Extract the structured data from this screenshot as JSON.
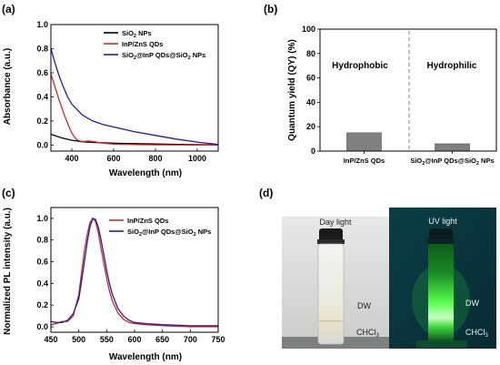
{
  "chart_data": [
    {
      "panel": "(a)",
      "type": "line",
      "title": "",
      "xlabel": "Wavelength (nm)",
      "ylabel": "Absorbance (a.u.)",
      "xlim": [
        300,
        1100
      ],
      "ylim": [
        -0.05,
        1.0
      ],
      "xticks": [
        400,
        600,
        800,
        1000
      ],
      "yticks": [
        0.0,
        0.2,
        0.4,
        0.6,
        0.8,
        1.0
      ],
      "legend_position": "top-right",
      "series": [
        {
          "name_parts": [
            "SiO",
            "2",
            " NPs"
          ],
          "color": "#000000",
          "x": [
            300,
            350,
            400,
            450,
            500,
            600,
            700,
            800,
            900,
            1000,
            1100
          ],
          "y": [
            0.09,
            0.06,
            0.04,
            0.028,
            0.022,
            0.016,
            0.012,
            0.009,
            0.006,
            0.004,
            0.002
          ]
        },
        {
          "name_parts": [
            "InP/ZnS QDs"
          ],
          "color": "#d62728",
          "x": [
            300,
            320,
            340,
            360,
            380,
            400,
            420,
            440,
            460,
            480,
            500,
            550,
            600,
            700,
            800,
            1000,
            1100
          ],
          "y": [
            0.59,
            0.48,
            0.37,
            0.27,
            0.18,
            0.1,
            0.05,
            0.032,
            0.03,
            0.034,
            0.03,
            0.015,
            0.008,
            0.004,
            0.002,
            0.0,
            0.0
          ]
        },
        {
          "name_parts": [
            "SiO",
            "2",
            "@InP QDs@SiO",
            "2",
            " NPs"
          ],
          "color": "#1f1f9a",
          "x": [
            300,
            320,
            340,
            360,
            380,
            400,
            450,
            500,
            550,
            600,
            700,
            800,
            900,
            1000,
            1100
          ],
          "y": [
            0.8,
            0.68,
            0.57,
            0.48,
            0.4,
            0.34,
            0.25,
            0.2,
            0.17,
            0.15,
            0.11,
            0.08,
            0.05,
            0.025,
            0.005
          ]
        }
      ]
    },
    {
      "panel": "(b)",
      "type": "bar",
      "title": "",
      "xlabel": "",
      "ylabel": "Quantum yield (QY) (%)",
      "ylim": [
        0,
        100
      ],
      "yticks": [
        0,
        20,
        40,
        60,
        80,
        100
      ],
      "categories": [
        [
          "InP/ZnS QDs"
        ],
        [
          "SiO",
          "2",
          "@InP QDs@SiO",
          "2",
          " NPs"
        ]
      ],
      "values": [
        15,
        6
      ],
      "bar_color": "#808080",
      "annotations": [
        "Hydrophobic",
        "Hydrophilic"
      ],
      "divider": "dashed vertical line"
    },
    {
      "panel": "(c)",
      "type": "line",
      "title": "",
      "xlabel": "Wavelength (nm)",
      "ylabel": "Normalized PL intensity (a.u.)",
      "xlim": [
        450,
        750
      ],
      "ylim": [
        -0.05,
        1.1
      ],
      "xticks": [
        450,
        500,
        550,
        600,
        650,
        700,
        750
      ],
      "yticks": [
        0.0,
        0.2,
        0.4,
        0.6,
        0.8,
        1.0
      ],
      "legend_position": "top-right",
      "series": [
        {
          "name_parts": [
            "InP/ZnS QDs"
          ],
          "color": "#d62728",
          "x": [
            450,
            460,
            470,
            480,
            490,
            500,
            505,
            510,
            515,
            520,
            525,
            530,
            535,
            540,
            545,
            550,
            555,
            560,
            570,
            580,
            590,
            600,
            620,
            650,
            700,
            750
          ],
          "y": [
            0.02,
            0.03,
            0.05,
            0.05,
            0.1,
            0.3,
            0.5,
            0.7,
            0.85,
            0.96,
            1.0,
            0.97,
            0.87,
            0.72,
            0.58,
            0.45,
            0.33,
            0.24,
            0.13,
            0.07,
            0.04,
            0.03,
            0.02,
            0.01,
            0.0,
            0.0
          ]
        },
        {
          "name_parts": [
            "SiO",
            "2",
            "@InP QDs@SiO",
            "2",
            " NPs"
          ],
          "color": "#1f1f9a",
          "x": [
            450,
            460,
            470,
            480,
            490,
            500,
            505,
            510,
            515,
            520,
            525,
            530,
            535,
            540,
            545,
            550,
            555,
            560,
            570,
            580,
            590,
            600,
            620,
            650,
            700,
            750
          ],
          "y": [
            0.05,
            0.04,
            0.04,
            0.06,
            0.12,
            0.26,
            0.42,
            0.6,
            0.78,
            0.92,
            1.0,
            0.99,
            0.92,
            0.8,
            0.66,
            0.52,
            0.4,
            0.3,
            0.17,
            0.1,
            0.06,
            0.04,
            0.03,
            0.02,
            0.01,
            0.01
          ]
        }
      ]
    }
  ],
  "photo": {
    "panel": "(d)",
    "captions": [
      "Day light",
      "UV light"
    ],
    "layer_labels": {
      "top": "DW",
      "bottom_parts": [
        "CHCl",
        "3"
      ]
    }
  }
}
